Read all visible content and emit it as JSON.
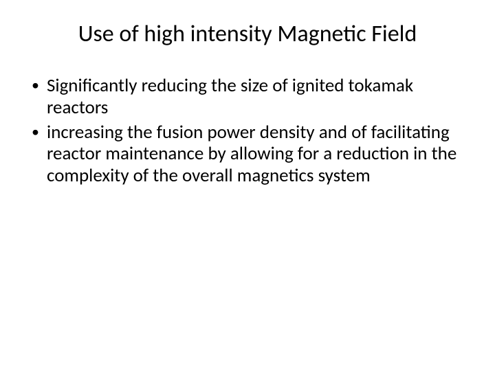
{
  "slide": {
    "title": "Use of high intensity Magnetic Field",
    "bullets": [
      "Significantly reducing the size of ignited tokamak reactors",
      "increasing the fusion power density and of facilitating reactor maintenance by allowing for a reduction in the complexity of the overall magnetics system"
    ],
    "style": {
      "background_color": "#ffffff",
      "text_color": "#000000",
      "title_fontsize": 34,
      "body_fontsize": 27,
      "font_family": "Calibri"
    }
  }
}
